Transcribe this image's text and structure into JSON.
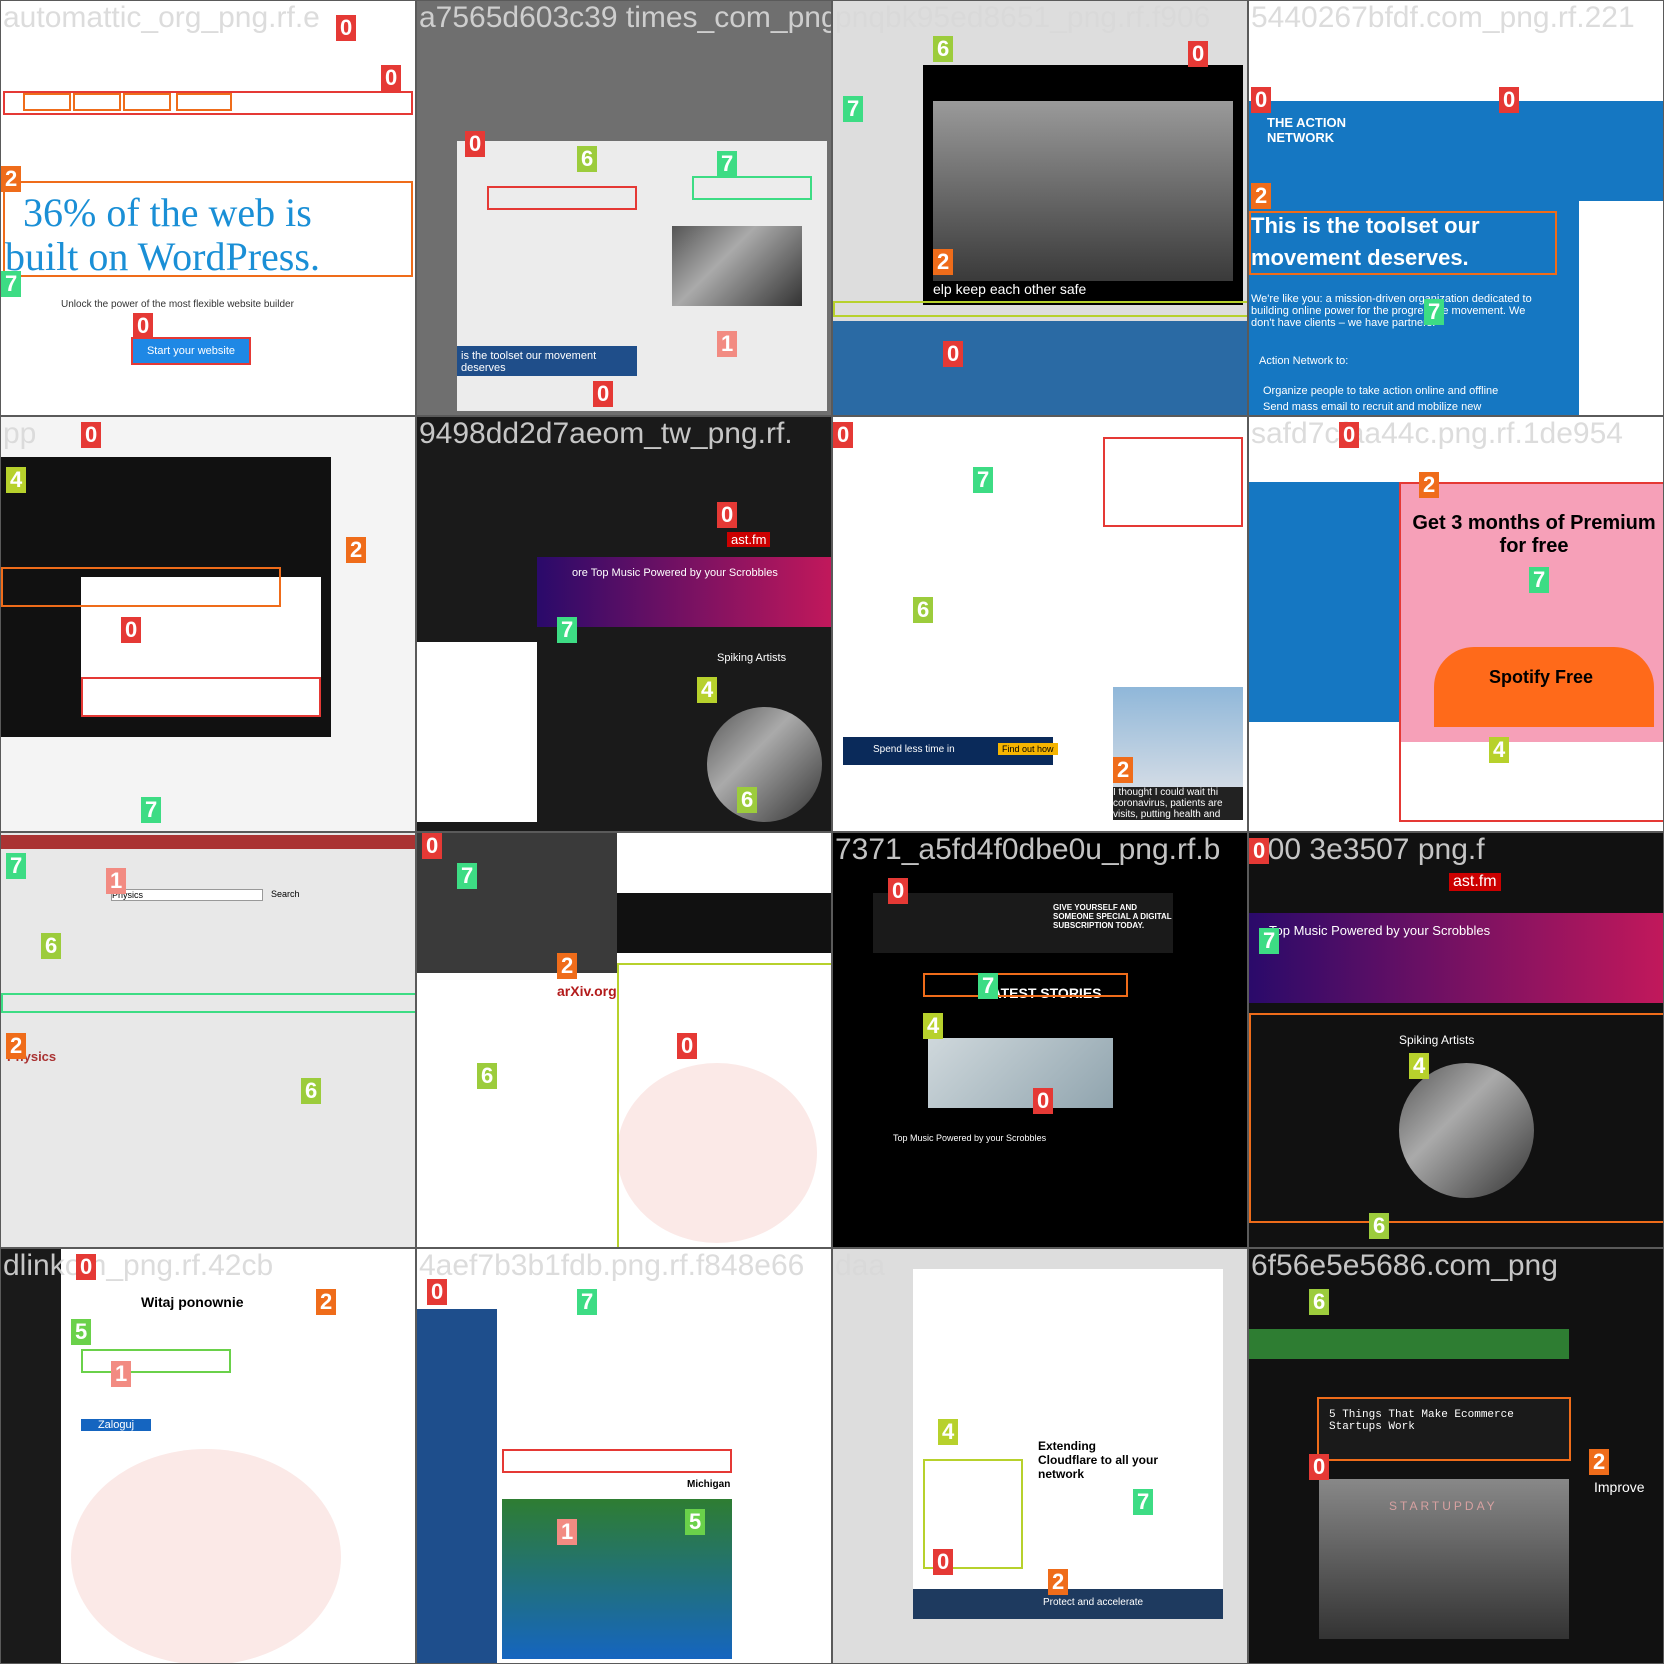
{
  "tiles": [
    {
      "caption": "automattic_org_png.rf.e",
      "headline1": "36% of the web is",
      "headline2": "built on WordPress.",
      "subline": "Unlock the power of the most flexible website builder",
      "cta": "Start your website"
    },
    {
      "caption": "a7565d603c39 times_com_png",
      "headline": "is the toolset our movement deserves"
    },
    {
      "caption": "pnqbk95ed8651_png.rf.f906",
      "overlay": "elp keep each other safe"
    },
    {
      "caption": "5440267bfdf.com_png.rf.221",
      "brand": "THE ACTION NETWORK",
      "headline1": "This is the toolset our",
      "headline2": "movement deserves.",
      "para": "We're like you: a mission-driven organization dedicated to building online power for the progressive movement. We don't have clients – we have partners.",
      "lead": "Action Network to:",
      "bullet1": "Organize people to take action online and offline",
      "bullet2": "Send mass email to recruit and mobilize new"
    },
    {
      "caption": "pp"
    },
    {
      "caption": "9498dd2d7aeom_tw_png.rf.",
      "banner": "ore Top Music Powered by your Scrobbles",
      "section": "Spiking Artists",
      "logo": "ast.fm"
    },
    {
      "caption": "",
      "quote": "I thought I could wait thi coronavirus, patients are visits, putting health and",
      "promo": "Spend less time in",
      "promo_btn": "Find out how"
    },
    {
      "caption": "safd7cfaa44c.png.rf.1de954",
      "promo1": "Get 3 months of Premium for free",
      "promo2": "Spotify Free"
    },
    {
      "caption": "",
      "search": "Search",
      "physics": "Physics",
      "group": "Physics"
    },
    {
      "caption": "",
      "site": "arXiv.org"
    },
    {
      "caption": "7371_a5fd4f0dbe0u_png.rf.b",
      "promo": "GIVE YOURSELF AND SOMEONE SPECIAL A DIGITAL SUBSCRIPTION TODAY.",
      "latest": "LATEST STORIES",
      "banner": "Top Music Powered by your Scrobbles"
    },
    {
      "caption": "000 3e3507 png.f",
      "logo": "ast.fm",
      "banner": "Top Music Powered by your Scrobbles",
      "section": "Spiking Artists"
    },
    {
      "caption": "dlinkom_png.rf.42cb",
      "heading": "Witaj ponownie",
      "login": "Zaloguj"
    },
    {
      "caption": "4aef7b3b1fdb.png.rf.f848e66",
      "promo": "Michigan"
    },
    {
      "caption": "daa",
      "promo": "Extending Cloudflare to all your network",
      "footer": "Protect and accelerate"
    },
    {
      "caption": "6f56e5e5686.com_png",
      "post": "5 Things That Make Ecommerce Startups Work",
      "photo_text": "STARTUPDAY",
      "side": "Improve"
    }
  ]
}
